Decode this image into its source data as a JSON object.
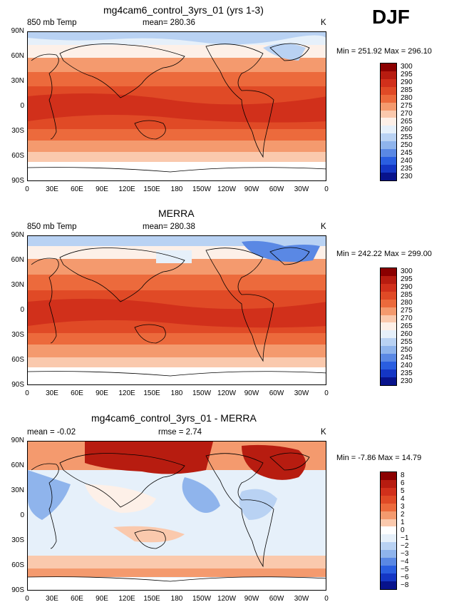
{
  "season_label": "DJF",
  "panels": [
    {
      "title": "mg4cam6_control_3yrs_01 (yrs 1-3)",
      "left_label": "850 mb Temp",
      "center_label": "mean= 280.36",
      "units": "K",
      "minmax": "Min = 251.92  Max = 296.10",
      "colorbar": [
        "300",
        "295",
        "290",
        "285",
        "280",
        "275",
        "270",
        "265",
        "260",
        "255",
        "250",
        "245",
        "240",
        "235",
        "230"
      ],
      "colors": [
        "#8b0000",
        "#b71c10",
        "#d1301b",
        "#e04a26",
        "#ec6a3c",
        "#f49a6e",
        "#fac9ad",
        "#fdf0e8",
        "#e6f0fa",
        "#b9d2f3",
        "#8fb4ec",
        "#5a88e4",
        "#2a5ee0",
        "#1436c4",
        "#08138c"
      ]
    },
    {
      "title": "MERRA",
      "left_label": "850 mb Temp",
      "center_label": "mean= 280.38",
      "units": "K",
      "minmax": "Min = 242.22  Max = 299.00",
      "colorbar": [
        "300",
        "295",
        "290",
        "285",
        "280",
        "275",
        "270",
        "265",
        "260",
        "255",
        "250",
        "245",
        "240",
        "235",
        "230"
      ],
      "colors": [
        "#8b0000",
        "#b71c10",
        "#d1301b",
        "#e04a26",
        "#ec6a3c",
        "#f49a6e",
        "#fac9ad",
        "#fdf0e8",
        "#e6f0fa",
        "#b9d2f3",
        "#8fb4ec",
        "#5a88e4",
        "#2a5ee0",
        "#1436c4",
        "#08138c"
      ]
    },
    {
      "title": "mg4cam6_control_3yrs_01 - MERRA",
      "left_label": "mean =    -0.02",
      "center_label": "rmse =     2.74",
      "units": "K",
      "minmax": "Min =   -7.86  Max =   14.79",
      "colorbar": [
        "8",
        "6",
        "5",
        "4",
        "3",
        "2",
        "1",
        "0",
        "−1",
        "−2",
        "−3",
        "−4",
        "−5",
        "−6",
        "−8"
      ],
      "colors": [
        "#8b0000",
        "#b71c10",
        "#d1301b",
        "#e04a26",
        "#ec6a3c",
        "#f49a6e",
        "#fac9ad",
        "#ffffff",
        "#e6f0fa",
        "#b9d2f3",
        "#8fb4ec",
        "#5a88e4",
        "#2a5ee0",
        "#1436c4",
        "#08138c"
      ]
    }
  ],
  "lat_ticks": [
    "90N",
    "60N",
    "30N",
    "0",
    "30S",
    "60S",
    "90S"
  ],
  "lon_ticks": [
    "0",
    "30E",
    "60E",
    "90E",
    "120E",
    "150E",
    "180",
    "150W",
    "120W",
    "90W",
    "60W",
    "30W",
    "0"
  ]
}
